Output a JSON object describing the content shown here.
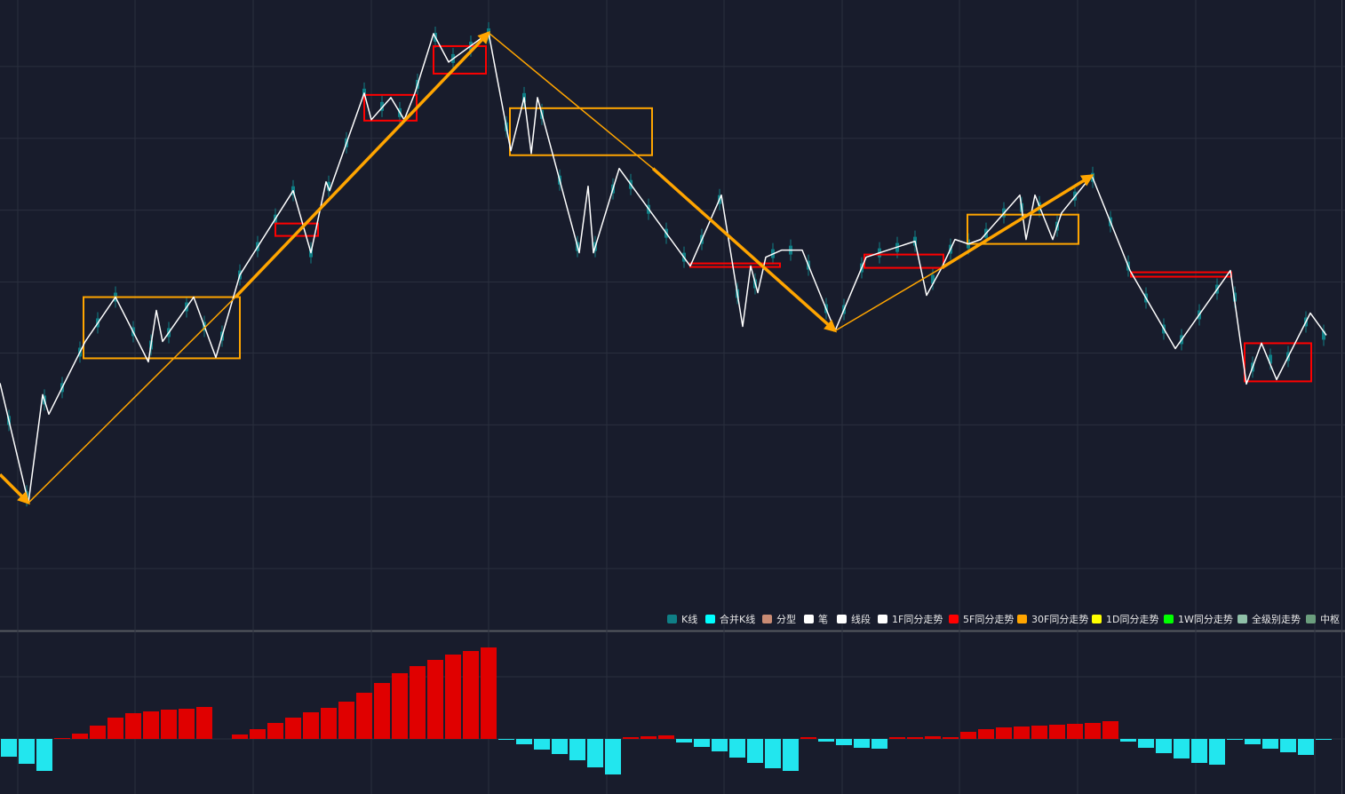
{
  "chart_data": [
    {
      "type": "candlestick",
      "xlim": [
        0,
        151.4
      ],
      "ylim": [
        0,
        71
      ],
      "xticks": [
        2,
        15.2,
        28.5,
        41.8,
        55,
        68.3,
        81.5,
        94.8,
        108,
        121.3,
        134.6,
        148
      ],
      "yticks": [
        6.9,
        15,
        23.1,
        31.2,
        39.2,
        47.3,
        55.4,
        63.5
      ],
      "grid": true,
      "legend": [
        {
          "name": "K线",
          "color": "#0f7f86"
        },
        {
          "name": "合并K线",
          "color": "#00ffff"
        },
        {
          "name": "分型",
          "color": "#c98b74"
        },
        {
          "name": "笔",
          "color": "#ffffff"
        },
        {
          "name": "线段",
          "color": "#ffffff"
        },
        {
          "name": "1F同分走势",
          "color": "#ffffff"
        },
        {
          "name": "5F同分走势",
          "color": "#ff0000"
        },
        {
          "name": "30F同分走势",
          "color": "#ffa500"
        },
        {
          "name": "1D同分走势",
          "color": "#ffff00"
        },
        {
          "name": "1W同分走势",
          "color": "#00ff00"
        },
        {
          "name": "全级别走势",
          "color": "#8fbfa8"
        },
        {
          "name": "中枢",
          "color": "#6b9e7e"
        }
      ],
      "candles": {
        "x": [
          1,
          3,
          5,
          7,
          9,
          11,
          13,
          15,
          17,
          19,
          21,
          23,
          25,
          27,
          29,
          31,
          33,
          35,
          37,
          39,
          41,
          43,
          45,
          47,
          49,
          51,
          53,
          55,
          57,
          59,
          61,
          63,
          65,
          67,
          69,
          71,
          73,
          75,
          77,
          79,
          81,
          83,
          85,
          87,
          89,
          91,
          93,
          95,
          97,
          99,
          101,
          103,
          105,
          107,
          109,
          111,
          113,
          115,
          117,
          119,
          121,
          123,
          125,
          127,
          129,
          131,
          133,
          135,
          137,
          139,
          141,
          143,
          145,
          147,
          149
        ],
        "open": [
          23.1,
          14.6,
          25.4,
          26.8,
          30.8,
          34.1,
          37,
          33.1,
          31.6,
          33,
          35.9,
          33.7,
          32.6,
          39.5,
          42.7,
          45.8,
          49,
          42,
          49.5,
          54.4,
          60,
          58.5,
          57.8,
          61,
          66.3,
          63.9,
          65.3,
          66.8,
          56.2,
          59.5,
          57.6,
          50.2,
          42.7,
          42.7,
          49.2,
          49.7,
          46.9,
          44.2,
          41.5,
          43.5,
          48,
          37.4,
          38.5,
          41.9,
          42.3,
          40.6,
          35.7,
          35.6,
          40.3,
          42,
          42.6,
          43.3,
          39,
          42.4,
          43,
          44.2,
          46.5,
          47.1,
          47.2,
          45,
          48.4,
          50.5,
          45.5,
          40.5,
          36.9,
          33.4,
          32.2,
          35,
          37.9,
          37,
          29.1,
          30,
          30.3,
          34.2,
          32.7
        ],
        "close": [
          24.1,
          15.6,
          26.4,
          27.8,
          31.8,
          35.1,
          38,
          34.1,
          32.6,
          34,
          36.9,
          34.7,
          33.6,
          40.5,
          43.7,
          46.8,
          50,
          43,
          50.5,
          55.4,
          61,
          59.5,
          58.8,
          62,
          67.3,
          64.9,
          66.3,
          67.8,
          57.2,
          60.5,
          58.6,
          51.2,
          43.7,
          43.7,
          50.2,
          50.7,
          47.9,
          45.2,
          42.5,
          44.5,
          49,
          38.4,
          39.5,
          42.9,
          43.3,
          41.6,
          36.7,
          36.6,
          41.3,
          43,
          43.6,
          44.3,
          40,
          43.4,
          44,
          45.2,
          47.5,
          48.1,
          48.2,
          46,
          49.4,
          51.5,
          46.5,
          41.5,
          37.9,
          34.4,
          33.2,
          36,
          38.9,
          38,
          30.1,
          31,
          31.3,
          35.2,
          33.7
        ],
        "low": [
          22.4,
          13.9,
          24.7,
          26.1,
          30.1,
          33.4,
          36.3,
          32.4,
          30.9,
          32.3,
          35.2,
          33,
          31.9,
          38.8,
          42,
          45.1,
          48.3,
          41.3,
          48.8,
          53.7,
          59.3,
          57.8,
          57.1,
          60.3,
          65.6,
          63.2,
          64.6,
          66.1,
          55.5,
          58.8,
          56.9,
          49.5,
          42,
          42,
          48.5,
          49,
          46.2,
          43.5,
          40.8,
          42.8,
          47.3,
          36.7,
          37.8,
          41.2,
          41.6,
          39.9,
          35,
          34.9,
          39.6,
          41.3,
          41.9,
          42.6,
          38.3,
          41.7,
          42.3,
          43.5,
          45.8,
          46.4,
          46.5,
          44.3,
          47.7,
          49.8,
          44.8,
          39.8,
          36.2,
          32.7,
          31.5,
          34.3,
          37.2,
          36.3,
          28.4,
          29.3,
          29.6,
          33.5,
          32
        ],
        "high": [
          24.8,
          16.3,
          27.1,
          28.5,
          32.5,
          35.8,
          38.7,
          34.8,
          33.3,
          34.7,
          37.6,
          35.4,
          34.3,
          41.2,
          44.4,
          47.5,
          50.7,
          43.7,
          51.2,
          56.1,
          61.7,
          60.2,
          59.5,
          62.7,
          68,
          65.6,
          67,
          68.5,
          57.9,
          61.2,
          59.3,
          51.9,
          44.4,
          44.4,
          50.9,
          51.4,
          48.6,
          45.9,
          43.2,
          45.2,
          49.7,
          39.1,
          40.2,
          43.6,
          44,
          42.3,
          37.4,
          37.3,
          42,
          43.7,
          44.3,
          45,
          40.7,
          44.1,
          44.7,
          45.9,
          48.2,
          48.8,
          48.9,
          46.7,
          50.1,
          52.2,
          47.2,
          42.2,
          38.6,
          35.1,
          33.9,
          36.7,
          39.6,
          38.7,
          30.8,
          31.7,
          32,
          35.9,
          34.4
        ]
      },
      "bi": {
        "x": [
          0,
          3.2,
          4.8,
          5.5,
          9.6,
          13,
          16.7,
          17.6,
          18.3,
          21.8,
          24.3,
          27,
          33,
          35,
          36.7,
          37.1,
          41,
          41.8,
          44,
          45.5,
          46.7,
          48.8,
          50.5,
          55,
          57.5,
          59,
          59.8,
          60.5,
          65.2,
          66.2,
          66.8,
          69.7,
          77.7,
          81.2,
          83.6,
          84.5,
          85.3,
          86.2,
          88,
          90.3,
          94,
          97.5,
          103,
          104.3,
          106,
          107.5,
          109,
          110.4,
          114.8,
          115.5,
          116.5,
          118.5,
          119.5,
          122.9,
          127.2,
          132.3,
          138.5,
          140.3,
          142,
          143.7,
          147.5,
          149.3
        ],
        "y": [
          27.8,
          14.3,
          26.5,
          24.3,
          32.5,
          37.5,
          30.2,
          36,
          32.5,
          37.5,
          30.7,
          40,
          49.5,
          42.5,
          50.5,
          49.5,
          60.5,
          57.5,
          60,
          57.5,
          60.5,
          67.2,
          64,
          67.3,
          54,
          60,
          53.7,
          60,
          42.5,
          50,
          42.5,
          52,
          41,
          49,
          34.2,
          41,
          38,
          42,
          42.8,
          42.8,
          33.7,
          42,
          43.8,
          37.7,
          40.8,
          44,
          43.5,
          44,
          49,
          44,
          49,
          44,
          47,
          51.2,
          40.5,
          31.7,
          40.5,
          27.7,
          32.3,
          28.2,
          35.7,
          33.2
        ]
      },
      "trend_30f": [
        {
          "x": [
            0,
            3.2
          ],
          "y": [
            17.5,
            14.3
          ],
          "thick": true
        },
        {
          "x": [
            3.2,
            26.5
          ],
          "y": [
            14.3,
            37.5
          ],
          "thick": false
        },
        {
          "x": [
            26.5,
            55
          ],
          "y": [
            37.5,
            67.3
          ],
          "thick": true
        },
        {
          "x": [
            55,
            73.5
          ],
          "y": [
            67.3,
            52
          ],
          "thick": false
        },
        {
          "x": [
            73.5,
            94
          ],
          "y": [
            52,
            33.7
          ],
          "thick": true
        },
        {
          "x": [
            94,
            106
          ],
          "y": [
            33.7,
            40.8
          ],
          "thick": false
        },
        {
          "x": [
            106,
            122.9
          ],
          "y": [
            40.8,
            51.2
          ],
          "thick": true
        }
      ],
      "pivots_30f": [
        {
          "x": [
            9.4,
            27.0
          ],
          "y": [
            30.6,
            37.5
          ]
        },
        {
          "x": [
            57.4,
            73.4
          ],
          "y": [
            53.5,
            58.8
          ]
        },
        {
          "x": [
            108.9,
            121.4
          ],
          "y": [
            43.5,
            46.8
          ]
        }
      ],
      "pivots_5f": [
        {
          "x": [
            31,
            35.8
          ],
          "y": [
            44.4,
            45.8
          ]
        },
        {
          "x": [
            41,
            46.9
          ],
          "y": [
            57.4,
            60.3
          ]
        },
        {
          "x": [
            48.8,
            54.7
          ],
          "y": [
            62.7,
            65.8
          ]
        },
        {
          "x": [
            77.7,
            87.8
          ],
          "y": [
            40.9,
            41.3
          ]
        },
        {
          "x": [
            97.3,
            106.2
          ],
          "y": [
            40.8,
            42.3
          ]
        },
        {
          "x": [
            127.3,
            138.6
          ],
          "y": [
            39.8,
            40.3
          ]
        },
        {
          "x": [
            140.1,
            147.6
          ],
          "y": [
            28,
            32.3
          ]
        }
      ]
    },
    {
      "type": "bar",
      "xlim": [
        0,
        151.4
      ],
      "ylim": [
        -62,
        120
      ],
      "yticks": [
        0,
        70
      ],
      "grid": true,
      "up_color": "#e00000",
      "down_color": "#22e6ee",
      "x": [
        1,
        3,
        5,
        7,
        9,
        11,
        13,
        15,
        17,
        19,
        21,
        23,
        25,
        27,
        29,
        31,
        33,
        35,
        37,
        39,
        41,
        43,
        45,
        47,
        49,
        51,
        53,
        55,
        57,
        59,
        61,
        63,
        65,
        67,
        69,
        71,
        73,
        75,
        77,
        79,
        81,
        83,
        85,
        87,
        89,
        91,
        93,
        95,
        97,
        99,
        101,
        103,
        105,
        107,
        109,
        111,
        113,
        115,
        117,
        119,
        121,
        123,
        125,
        127,
        129,
        131,
        133,
        135,
        137,
        139,
        141,
        143,
        145,
        147,
        149
      ],
      "values": [
        -20,
        -28,
        -36,
        1,
        6,
        15,
        24,
        29,
        31,
        33,
        34,
        36,
        0,
        5,
        11,
        18,
        24,
        30,
        35,
        42,
        52,
        63,
        74,
        82,
        89,
        95,
        99,
        103,
        -1,
        -6,
        -12,
        -17,
        -24,
        -32,
        -40,
        2,
        3,
        4,
        -4,
        -9,
        -14,
        -21,
        -27,
        -33,
        -36,
        2,
        -3,
        -7,
        -10,
        -11,
        2,
        2,
        3,
        2,
        8,
        11,
        13,
        14,
        15,
        16,
        17,
        18,
        20,
        -3,
        -10,
        -16,
        -22,
        -27,
        -29,
        -1,
        -6,
        -11,
        -15,
        -18,
        -1
      ]
    }
  ]
}
